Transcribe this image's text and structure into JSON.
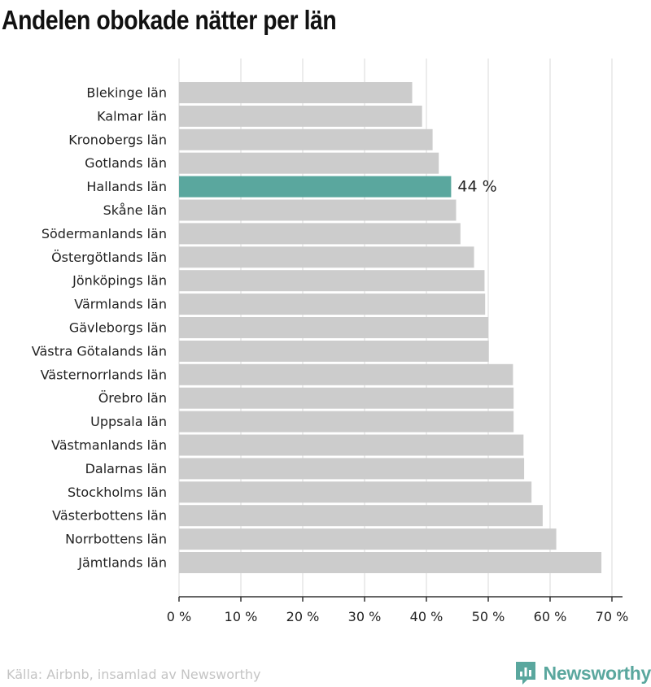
{
  "title": "Andelen obokade nätter per län",
  "footer": {
    "source": "Källa: Airbnb, insamlad av Newsworthy",
    "brand_name": "Newsworthy",
    "brand_icon": "newsworthy-logo-icon",
    "brand_color": "#5aa79e"
  },
  "colors": {
    "bar": "#cccccc",
    "highlight": "#5aa79e",
    "grid": "#d9d9d9",
    "axis": "#333333",
    "text": "#222222"
  },
  "chart_data": {
    "type": "bar",
    "orientation": "horizontal",
    "categories": [
      "Blekinge län",
      "Kalmar län",
      "Kronobergs län",
      "Gotlands län",
      "Hallands län",
      "Skåne län",
      "Södermanlands län",
      "Östergötlands län",
      "Jönköpings län",
      "Värmlands län",
      "Gävleborgs län",
      "Västra Götalands län",
      "Västernorrlands län",
      "Örebro län",
      "Uppsala län",
      "Västmanlands län",
      "Dalarnas län",
      "Stockholms län",
      "Västerbottens län",
      "Norrbottens län",
      "Jämtlands län"
    ],
    "values": [
      37.7,
      39.3,
      41.0,
      42.0,
      44.0,
      44.8,
      45.5,
      47.7,
      49.4,
      49.5,
      50.0,
      50.1,
      54.0,
      54.1,
      54.1,
      55.7,
      55.8,
      57.0,
      58.8,
      61.0,
      68.3
    ],
    "highlight_category": "Hallands län",
    "highlight_label": "44 %",
    "xlim": [
      0,
      70
    ],
    "xticks": [
      0,
      10,
      20,
      30,
      40,
      50,
      60,
      70
    ],
    "xtick_labels": [
      "0 %",
      "10 %",
      "20 %",
      "30 %",
      "40 %",
      "50 %",
      "60 %",
      "70 %"
    ],
    "xlabel": "",
    "ylabel": "",
    "grid": true
  }
}
